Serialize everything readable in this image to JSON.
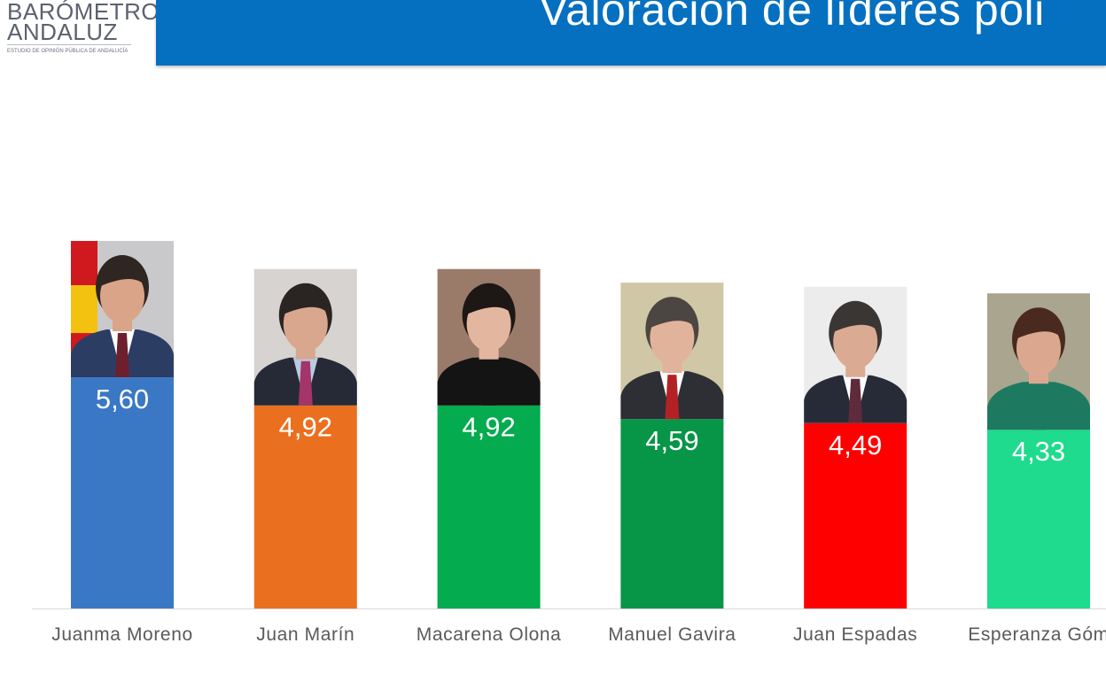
{
  "header": {
    "logo_line1": "BARÓMETRO",
    "logo_line2": "ANDALUZ",
    "logo_subtitle": "ESTUDIO DE OPINIÓN PÚBLICA DE ANDALUCÍA",
    "title": "Valoración de líderes poli"
  },
  "chart_data": {
    "type": "bar",
    "categories": [
      "Juanma Moreno",
      "Juan Marín",
      "Macarena Olona",
      "Manuel Gavira",
      "Juan Espadas",
      "Esperanza Góm"
    ],
    "values": [
      5.6,
      4.92,
      4.92,
      4.59,
      4.49,
      4.33
    ],
    "value_labels": [
      "5,60",
      "4,92",
      "4,92",
      "4,59",
      "4,49",
      "4,33"
    ],
    "colors": [
      "#3a78c6",
      "#ea7020",
      "#05ab4f",
      "#079547",
      "#fe0000",
      "#1edb8d"
    ],
    "grid": false,
    "legend": "none",
    "photos": [
      {
        "subject": "photo-juanma-moreno",
        "bg": "#c9c9cc",
        "skin": "#d9a488",
        "hair": "#2f2622",
        "suit": "#2c3d63",
        "shirt": "#ffffff",
        "tie": "#6e1f2e",
        "flag": true
      },
      {
        "subject": "photo-juan-marin",
        "bg": "#d6d3d0",
        "skin": "#d8a78e",
        "hair": "#2a2523",
        "suit": "#252a36",
        "shirt": "#b9cbe0",
        "tie": "#a3356b",
        "flag": false
      },
      {
        "subject": "photo-macarena-olona",
        "bg": "#9a7b6a",
        "skin": "#e3b6a0",
        "hair": "#1d1716",
        "suit": "#141414",
        "shirt": "#141414",
        "tie": "#141414",
        "flag": false
      },
      {
        "subject": "photo-manuel-gavira",
        "bg": "#cfc7a6",
        "skin": "#e2b39b",
        "hair": "#4c4642",
        "suit": "#2e2f35",
        "shirt": "#ffffff",
        "tie": "#b42125",
        "flag": false
      },
      {
        "subject": "photo-juan-espadas",
        "bg": "#ececec",
        "skin": "#dbaa93",
        "hair": "#3a3634",
        "suit": "#272b37",
        "shirt": "#ffffff",
        "tie": "#5e2b3b",
        "flag": false
      },
      {
        "subject": "photo-esperanza-gomez",
        "bg": "#a9a58e",
        "skin": "#dba88f",
        "hair": "#4a2a1f",
        "suit": "#1d7a61",
        "shirt": "#1d7a61",
        "tie": "#1d7a61",
        "flag": false
      }
    ]
  }
}
